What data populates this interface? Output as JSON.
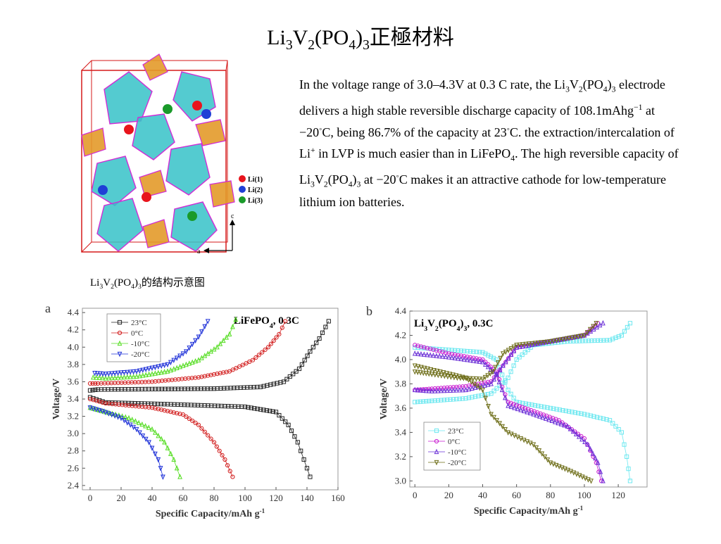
{
  "title": {
    "parts": [
      {
        "t": "Li",
        "s": ""
      },
      {
        "t": "3",
        "s": "sub"
      },
      {
        "t": "V",
        "s": ""
      },
      {
        "t": "2",
        "s": "sub"
      },
      {
        "t": "(PO",
        "s": ""
      },
      {
        "t": "4",
        "s": "sub"
      },
      {
        "t": ")",
        "s": ""
      },
      {
        "t": "3",
        "s": "sub"
      },
      {
        "t": "正極材料",
        "s": ""
      }
    ]
  },
  "description": {
    "parts": [
      {
        "t": "In the voltage range of 3.0–4.3V at 0.3 C rate, the Li",
        "s": ""
      },
      {
        "t": "3",
        "s": "sub"
      },
      {
        "t": "V",
        "s": ""
      },
      {
        "t": "2",
        "s": "sub"
      },
      {
        "t": "(PO",
        "s": ""
      },
      {
        "t": "4",
        "s": "sub"
      },
      {
        "t": ")",
        "s": ""
      },
      {
        "t": "3",
        "s": "sub"
      },
      {
        "t": " electrode delivers a high stable reversible discharge capacity of 108.1mAhg",
        "s": ""
      },
      {
        "t": "−1",
        "s": "sup"
      },
      {
        "t": " at −20",
        "s": ""
      },
      {
        "t": "◦",
        "s": "sup"
      },
      {
        "t": "C, being 86.7% of the capacity at 23",
        "s": ""
      },
      {
        "t": "◦",
        "s": "sup"
      },
      {
        "t": "C. the extraction/intercalation of Li",
        "s": ""
      },
      {
        "t": "+",
        "s": "sup"
      },
      {
        "t": " in LVP is much easier than in LiFePO",
        "s": ""
      },
      {
        "t": "4",
        "s": "sub"
      },
      {
        "t": ". The high reversible capacity of Li",
        "s": ""
      },
      {
        "t": "3",
        "s": "sub"
      },
      {
        "t": "V",
        "s": ""
      },
      {
        "t": "2",
        "s": "sub"
      },
      {
        "t": "(PO",
        "s": ""
      },
      {
        "t": "4",
        "s": "sub"
      },
      {
        "t": ")",
        "s": ""
      },
      {
        "t": "3",
        "s": "sub"
      },
      {
        "t": " at −20",
        "s": ""
      },
      {
        "t": "◦",
        "s": "sup"
      },
      {
        "t": "C makes it an attractive cathode for low-temperature lithium ion batteries.",
        "s": ""
      }
    ]
  },
  "structure": {
    "legend": [
      "Li(1)",
      "Li(2)",
      "Li(3)"
    ],
    "legend_colors": [
      "#e8141c",
      "#1f3fd6",
      "#1a9a2a"
    ],
    "axis_c": "c",
    "axis_a": "a",
    "caption_parts": [
      {
        "t": "Li",
        "s": ""
      },
      {
        "t": "3",
        "s": "sub"
      },
      {
        "t": "V",
        "s": ""
      },
      {
        "t": "2",
        "s": "sub"
      },
      {
        "t": "(PO",
        "s": ""
      },
      {
        "t": "4",
        "s": "sub"
      },
      {
        "t": ")",
        "s": ""
      },
      {
        "t": "3",
        "s": "sub"
      },
      {
        "t": "的结构示意图",
        "s": ""
      }
    ]
  },
  "chart_data": [
    {
      "type": "line",
      "panel_label": "a",
      "title_parts": [
        {
          "t": "LiFePO",
          "s": ""
        },
        {
          "t": "4",
          "s": "sub"
        },
        {
          "t": ", 0.3C",
          "s": ""
        }
      ],
      "xlabel": "Specific Capacity/mAh g",
      "xlabel_sup": "-1",
      "ylabel": "Voltage/V",
      "xlim": [
        -5,
        160
      ],
      "ylim": [
        2.35,
        4.45
      ],
      "xticks": [
        0,
        20,
        40,
        60,
        80,
        100,
        120,
        140,
        160
      ],
      "yticks": [
        2.4,
        2.6,
        2.8,
        3.0,
        3.2,
        3.4,
        3.6,
        3.8,
        4.0,
        4.2,
        4.4
      ],
      "legend_position": "top-left",
      "series": [
        {
          "name": "23°C",
          "color": "#222222",
          "marker": "square",
          "charge": [
            [
              0,
              3.5
            ],
            [
              5,
              3.51
            ],
            [
              40,
              3.515
            ],
            [
              80,
              3.52
            ],
            [
              110,
              3.54
            ],
            [
              125,
              3.6
            ],
            [
              135,
              3.75
            ],
            [
              142,
              3.95
            ],
            [
              148,
              4.1
            ],
            [
              154,
              4.3
            ]
          ],
          "discharge": [
            [
              0,
              3.42
            ],
            [
              10,
              3.36
            ],
            [
              50,
              3.34
            ],
            [
              100,
              3.31
            ],
            [
              120,
              3.25
            ],
            [
              128,
              3.1
            ],
            [
              134,
              2.9
            ],
            [
              138,
              2.7
            ],
            [
              142,
              2.5
            ]
          ]
        },
        {
          "name": "0°C",
          "color": "#d11a1a",
          "marker": "circle",
          "charge": [
            [
              0,
              3.58
            ],
            [
              5,
              3.58
            ],
            [
              40,
              3.6
            ],
            [
              70,
              3.65
            ],
            [
              90,
              3.72
            ],
            [
              105,
              3.85
            ],
            [
              115,
              4.0
            ],
            [
              122,
              4.15
            ],
            [
              126,
              4.3
            ]
          ],
          "discharge": [
            [
              0,
              3.4
            ],
            [
              10,
              3.35
            ],
            [
              40,
              3.3
            ],
            [
              60,
              3.22
            ],
            [
              70,
              3.1
            ],
            [
              80,
              2.9
            ],
            [
              87,
              2.7
            ],
            [
              92,
              2.5
            ]
          ]
        },
        {
          "name": "-10°C",
          "color": "#55dd22",
          "marker": "triangle-up",
          "charge": [
            [
              2,
              3.65
            ],
            [
              10,
              3.64
            ],
            [
              30,
              3.66
            ],
            [
              50,
              3.72
            ],
            [
              70,
              3.85
            ],
            [
              82,
              4.0
            ],
            [
              90,
              4.15
            ],
            [
              94,
              4.32
            ]
          ],
          "discharge": [
            [
              0,
              3.3
            ],
            [
              10,
              3.25
            ],
            [
              25,
              3.18
            ],
            [
              40,
              3.05
            ],
            [
              48,
              2.9
            ],
            [
              54,
              2.7
            ],
            [
              58,
              2.5
            ]
          ]
        },
        {
          "name": "-20°C",
          "color": "#1c2fd8",
          "marker": "triangle-down",
          "charge": [
            [
              3,
              3.7
            ],
            [
              10,
              3.69
            ],
            [
              30,
              3.72
            ],
            [
              50,
              3.8
            ],
            [
              62,
              3.95
            ],
            [
              70,
              4.12
            ],
            [
              76,
              4.3
            ]
          ],
          "discharge": [
            [
              0,
              3.3
            ],
            [
              8,
              3.26
            ],
            [
              20,
              3.18
            ],
            [
              30,
              3.05
            ],
            [
              38,
              2.9
            ],
            [
              44,
              2.7
            ],
            [
              47,
              2.5
            ]
          ]
        }
      ]
    },
    {
      "type": "line",
      "panel_label": "b",
      "title_parts": [
        {
          "t": "Li",
          "s": ""
        },
        {
          "t": "3",
          "s": "sub"
        },
        {
          "t": "V",
          "s": ""
        },
        {
          "t": "2",
          "s": "sub"
        },
        {
          "t": "(PO",
          "s": ""
        },
        {
          "t": "4",
          "s": "sub"
        },
        {
          "t": ")",
          "s": ""
        },
        {
          "t": "3",
          "s": "sub"
        },
        {
          "t": ", 0.3C",
          "s": ""
        }
      ],
      "xlabel": "Specific Capacity/mAh g",
      "xlabel_sup": "-1",
      "ylabel": "Voltage/V",
      "xlim": [
        -3,
        137
      ],
      "ylim": [
        2.95,
        4.4
      ],
      "xticks": [
        0,
        20,
        40,
        60,
        80,
        100,
        120
      ],
      "yticks": [
        3.0,
        3.2,
        3.4,
        3.6,
        3.8,
        4.0,
        4.2,
        4.4
      ],
      "legend_position": "bottom-left",
      "series": [
        {
          "name": "23°C",
          "color": "#6ee8f0",
          "marker": "square",
          "charge": [
            [
              0,
              3.65
            ],
            [
              10,
              3.66
            ],
            [
              30,
              3.68
            ],
            [
              45,
              3.72
            ],
            [
              55,
              3.85
            ],
            [
              60,
              4.0
            ],
            [
              70,
              4.12
            ],
            [
              90,
              4.15
            ],
            [
              115,
              4.16
            ],
            [
              122,
              4.2
            ],
            [
              127,
              4.3
            ]
          ],
          "discharge": [
            [
              0,
              4.1
            ],
            [
              20,
              4.08
            ],
            [
              40,
              4.06
            ],
            [
              48,
              4.0
            ],
            [
              55,
              3.75
            ],
            [
              60,
              3.65
            ],
            [
              80,
              3.6
            ],
            [
              100,
              3.55
            ],
            [
              115,
              3.5
            ],
            [
              122,
              3.4
            ],
            [
              125,
              3.2
            ],
            [
              127,
              3.0
            ]
          ]
        },
        {
          "name": "0°C",
          "color": "#c81ad0",
          "marker": "circle",
          "charge": [
            [
              0,
              3.75
            ],
            [
              10,
              3.76
            ],
            [
              30,
              3.78
            ],
            [
              45,
              3.82
            ],
            [
              52,
              3.95
            ],
            [
              60,
              4.1
            ],
            [
              80,
              4.15
            ],
            [
              100,
              4.2
            ],
            [
              108,
              4.3
            ]
          ],
          "discharge": [
            [
              0,
              4.12
            ],
            [
              20,
              4.05
            ],
            [
              40,
              4.0
            ],
            [
              48,
              3.9
            ],
            [
              55,
              3.65
            ],
            [
              65,
              3.6
            ],
            [
              85,
              3.5
            ],
            [
              100,
              3.35
            ],
            [
              107,
              3.15
            ],
            [
              110,
              3.0
            ]
          ]
        },
        {
          "name": "-10°C",
          "color": "#6a2fd6",
          "marker": "triangle-up",
          "charge": [
            [
              0,
              3.75
            ],
            [
              10,
              3.74
            ],
            [
              30,
              3.75
            ],
            [
              45,
              3.8
            ],
            [
              52,
              3.95
            ],
            [
              60,
              4.1
            ],
            [
              80,
              4.15
            ],
            [
              100,
              4.2
            ],
            [
              111,
              4.3
            ]
          ],
          "discharge": [
            [
              0,
              4.05
            ],
            [
              20,
              4.02
            ],
            [
              40,
              3.98
            ],
            [
              48,
              3.88
            ],
            [
              55,
              3.62
            ],
            [
              70,
              3.55
            ],
            [
              90,
              3.45
            ],
            [
              102,
              3.3
            ],
            [
              108,
              3.15
            ],
            [
              111,
              3.0
            ]
          ]
        },
        {
          "name": "-20°C",
          "color": "#6b6b14",
          "marker": "triangle-down",
          "charge": [
            [
              0,
              3.9
            ],
            [
              10,
              3.88
            ],
            [
              25,
              3.85
            ],
            [
              40,
              3.84
            ],
            [
              46,
              3.9
            ],
            [
              52,
              4.05
            ],
            [
              60,
              4.12
            ],
            [
              80,
              4.15
            ],
            [
              100,
              4.2
            ],
            [
              107,
              4.3
            ]
          ],
          "discharge": [
            [
              0,
              3.95
            ],
            [
              15,
              3.9
            ],
            [
              30,
              3.85
            ],
            [
              40,
              3.75
            ],
            [
              45,
              3.55
            ],
            [
              55,
              3.4
            ],
            [
              70,
              3.3
            ],
            [
              80,
              3.15
            ],
            [
              92,
              3.08
            ],
            [
              104,
              3.0
            ]
          ]
        }
      ]
    }
  ]
}
